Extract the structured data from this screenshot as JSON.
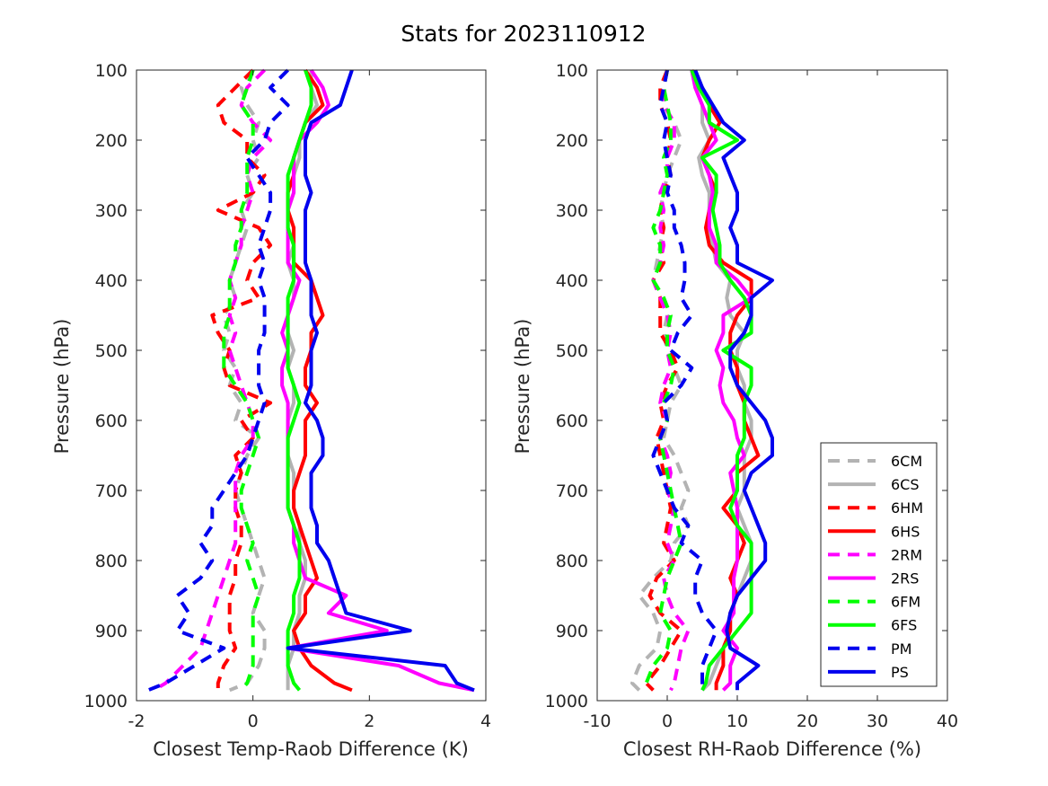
{
  "chart_data": [
    {
      "type": "line",
      "title": "Stats for 2023110912",
      "xlabel": "Closest Temp-Raob Difference (K)",
      "ylabel": "Pressure (hPa)",
      "xlim": [
        -2,
        4
      ],
      "ylim": [
        100,
        1000
      ],
      "y_reversed": true,
      "xticks": [
        "-2",
        "0",
        "2",
        "4"
      ],
      "yticks": [
        "100",
        "200",
        "300",
        "400",
        "500",
        "600",
        "700",
        "800",
        "900",
        "1000"
      ],
      "grid": false,
      "pressure": [
        100,
        125,
        150,
        175,
        200,
        225,
        250,
        275,
        300,
        325,
        350,
        375,
        400,
        425,
        450,
        475,
        500,
        525,
        550,
        575,
        600,
        625,
        650,
        675,
        700,
        725,
        750,
        775,
        800,
        825,
        850,
        875,
        900,
        925,
        950,
        975,
        985
      ],
      "series": [
        {
          "name": "6CM",
          "color": "#b3b3b3",
          "dash": true,
          "values": [
            0.0,
            -0.2,
            -0.1,
            0.1,
            0.0,
            0.1,
            -0.1,
            0.0,
            -0.2,
            -0.1,
            -0.2,
            -0.3,
            -0.4,
            -0.3,
            -0.5,
            -0.4,
            -0.5,
            -0.3,
            -0.4,
            -0.2,
            -0.3,
            0.1,
            -0.1,
            -0.2,
            -0.3,
            -0.2,
            -0.1,
            0.0,
            0.1,
            0.2,
            0.1,
            0.0,
            0.2,
            0.2,
            0.1,
            -0.1,
            -0.4
          ]
        },
        {
          "name": "6CS",
          "color": "#b3b3b3",
          "dash": false,
          "values": [
            1.0,
            1.0,
            1.1,
            0.9,
            0.8,
            0.8,
            0.7,
            0.7,
            0.6,
            0.6,
            0.7,
            0.6,
            0.7,
            0.7,
            0.6,
            0.6,
            0.7,
            0.6,
            0.7,
            0.7,
            0.6,
            0.6,
            0.6,
            0.7,
            0.7,
            0.7,
            0.8,
            0.8,
            0.9,
            0.9,
            0.8,
            0.8,
            0.7,
            0.7,
            0.6,
            0.6,
            0.6
          ]
        },
        {
          "name": "6HM",
          "color": "#ff0000",
          "dash": true,
          "values": [
            0.0,
            -0.3,
            -0.6,
            -0.5,
            -0.1,
            -0.1,
            0.2,
            0.0,
            -0.6,
            0.1,
            0.3,
            0.0,
            -0.1,
            0.1,
            -0.7,
            -0.6,
            -0.4,
            -0.5,
            -0.4,
            0.3,
            -0.2,
            0.0,
            -0.3,
            -0.2,
            -0.3,
            -0.3,
            -0.2,
            -0.2,
            -0.3,
            -0.3,
            -0.4,
            -0.4,
            -0.4,
            -0.3,
            -0.5,
            -0.6,
            -0.6
          ]
        },
        {
          "name": "6HS",
          "color": "#ff0000",
          "dash": false,
          "values": [
            0.9,
            1.1,
            1.2,
            0.9,
            0.8,
            0.7,
            0.7,
            0.6,
            0.6,
            0.7,
            0.7,
            0.7,
            1.0,
            1.1,
            1.2,
            1.0,
            1.0,
            0.9,
            0.9,
            1.1,
            0.9,
            0.9,
            0.9,
            0.8,
            0.7,
            0.7,
            0.8,
            0.9,
            1.0,
            1.1,
            0.9,
            0.9,
            0.7,
            0.8,
            1.0,
            1.4,
            1.7
          ]
        },
        {
          "name": "2RM",
          "color": "#ff00ff",
          "dash": true,
          "values": [
            0.2,
            -0.1,
            -0.2,
            0.0,
            0.3,
            0.0,
            -0.1,
            0.0,
            -0.1,
            -0.2,
            -0.2,
            -0.3,
            -0.4,
            -0.3,
            -0.4,
            -0.3,
            -0.4,
            -0.3,
            -0.2,
            -0.1,
            0.0,
            0.0,
            -0.2,
            -0.3,
            -0.3,
            -0.3,
            -0.3,
            -0.3,
            -0.4,
            -0.5,
            -0.6,
            -0.7,
            -0.8,
            -0.9,
            -1.2,
            -1.5,
            -1.7
          ]
        },
        {
          "name": "2RS",
          "color": "#ff00ff",
          "dash": false,
          "values": [
            1.0,
            1.2,
            1.3,
            1.1,
            0.8,
            0.7,
            0.7,
            0.7,
            0.6,
            0.6,
            0.6,
            0.6,
            0.8,
            0.7,
            0.6,
            0.5,
            0.6,
            0.5,
            0.5,
            0.6,
            0.6,
            0.6,
            0.6,
            0.6,
            0.6,
            0.6,
            0.7,
            0.7,
            0.8,
            0.9,
            1.6,
            1.3,
            2.3,
            0.6,
            2.5,
            3.2,
            3.8
          ]
        },
        {
          "name": "6FM",
          "color": "#00ff00",
          "dash": true,
          "values": [
            0.0,
            -0.1,
            -0.2,
            0.0,
            0.0,
            -0.1,
            -0.1,
            -0.1,
            -0.2,
            -0.2,
            -0.3,
            -0.3,
            -0.4,
            -0.4,
            -0.4,
            -0.5,
            -0.5,
            -0.5,
            -0.3,
            -0.1,
            0.0,
            0.1,
            0.0,
            -0.1,
            -0.2,
            -0.2,
            -0.1,
            0.0,
            -0.1,
            0.0,
            0.1,
            0.0,
            0.0,
            0.0,
            0.0,
            -0.1,
            -0.2
          ]
        },
        {
          "name": "6FS",
          "color": "#00ff00",
          "dash": false,
          "values": [
            0.9,
            1.0,
            1.0,
            0.9,
            0.8,
            0.7,
            0.6,
            0.6,
            0.6,
            0.6,
            0.7,
            0.7,
            0.7,
            0.6,
            0.6,
            0.6,
            0.6,
            0.6,
            0.7,
            0.8,
            0.7,
            0.6,
            0.6,
            0.6,
            0.6,
            0.6,
            0.7,
            0.8,
            0.8,
            0.8,
            0.7,
            0.7,
            0.6,
            0.6,
            0.6,
            0.7,
            0.8
          ]
        },
        {
          "name": "PM",
          "color": "#0000ee",
          "dash": true,
          "values": [
            0.6,
            0.3,
            0.6,
            0.3,
            0.2,
            -0.1,
            0.1,
            0.3,
            0.3,
            0.2,
            0.1,
            0.2,
            0.1,
            0.2,
            0.2,
            0.2,
            0.1,
            0.1,
            0.1,
            0.2,
            0.1,
            0.0,
            -0.1,
            -0.3,
            -0.5,
            -0.7,
            -0.7,
            -0.9,
            -0.7,
            -0.9,
            -1.3,
            -1.1,
            -1.3,
            -0.5,
            -1.0,
            -1.5,
            -1.8
          ]
        },
        {
          "name": "PS",
          "color": "#0000ee",
          "dash": false,
          "values": [
            1.7,
            1.6,
            1.5,
            1.0,
            0.9,
            0.9,
            0.9,
            1.0,
            0.9,
            0.9,
            0.9,
            0.9,
            1.0,
            1.0,
            1.0,
            1.1,
            1.0,
            1.0,
            1.0,
            0.9,
            1.1,
            1.2,
            1.2,
            1.0,
            1.0,
            1.0,
            1.1,
            1.1,
            1.3,
            1.4,
            1.5,
            1.6,
            2.7,
            0.6,
            3.3,
            3.5,
            3.8
          ]
        }
      ]
    },
    {
      "type": "line",
      "title": "",
      "xlabel": "Closest RH-Raob Difference (%)",
      "ylabel": "Pressure (hPa)",
      "xlim": [
        -10,
        40
      ],
      "ylim": [
        100,
        1000
      ],
      "y_reversed": true,
      "xticks": [
        "-10",
        "0",
        "10",
        "20",
        "30",
        "40"
      ],
      "yticks": [
        "100",
        "200",
        "300",
        "400",
        "500",
        "600",
        "700",
        "800",
        "900",
        "1000"
      ],
      "grid": false,
      "legend": "bottom-right",
      "pressure": [
        100,
        125,
        150,
        175,
        200,
        225,
        250,
        275,
        300,
        325,
        350,
        375,
        400,
        425,
        450,
        475,
        500,
        525,
        550,
        575,
        600,
        625,
        650,
        675,
        700,
        725,
        750,
        775,
        800,
        825,
        850,
        875,
        900,
        925,
        950,
        975,
        985
      ],
      "series": [
        {
          "name": "6CM",
          "color": "#b3b3b3",
          "dash": true,
          "values": [
            0.0,
            -0.5,
            -0.5,
            1.0,
            2.0,
            1.0,
            0.0,
            -0.5,
            -1.0,
            -0.5,
            -1.0,
            -1.5,
            -2.0,
            -1.0,
            0.0,
            -0.5,
            0.0,
            1.0,
            2.0,
            0.5,
            0.0,
            -0.5,
            1.0,
            2.0,
            3.0,
            2.0,
            3.0,
            1.0,
            0.5,
            -2.0,
            -4.0,
            -2.0,
            -1.0,
            -1.5,
            -4.0,
            -5.0,
            -4.0
          ]
        },
        {
          "name": "6CS",
          "color": "#b3b3b3",
          "dash": false,
          "values": [
            3.5,
            4.0,
            5.0,
            5.0,
            6.0,
            4.5,
            5.0,
            6.0,
            6.0,
            6.0,
            6.5,
            7.0,
            9.0,
            8.5,
            9.0,
            11.0,
            10.0,
            10.0,
            11.0,
            11.0,
            12.0,
            12.0,
            11.0,
            11.0,
            11.0,
            10.0,
            11.0,
            12.0,
            12.0,
            11.0,
            10.0,
            9.0,
            9.0,
            8.0,
            7.0,
            6.0,
            5.0
          ]
        },
        {
          "name": "6HM",
          "color": "#ff0000",
          "dash": true,
          "values": [
            0.0,
            -1.0,
            -1.0,
            0.0,
            0.5,
            0.0,
            0.5,
            -0.5,
            -1.0,
            -0.5,
            -1.0,
            -0.5,
            -2.0,
            -1.0,
            -1.0,
            -1.0,
            0.5,
            1.5,
            0.0,
            -1.0,
            -0.5,
            -1.5,
            -1.0,
            -0.5,
            0.0,
            0.5,
            0.0,
            -0.5,
            1.0,
            -1.5,
            -2.5,
            -1.0,
            2.0,
            0.5,
            -1.0,
            -3.0,
            -2.0
          ]
        },
        {
          "name": "6HS",
          "color": "#ff0000",
          "dash": false,
          "values": [
            3.5,
            5.0,
            6.0,
            7.5,
            6.0,
            5.0,
            6.0,
            7.0,
            6.0,
            5.5,
            6.0,
            8.0,
            12.0,
            12.0,
            10.0,
            9.0,
            9.0,
            10.0,
            10.0,
            11.0,
            11.0,
            12.0,
            13.0,
            10.0,
            10.0,
            8.0,
            10.0,
            11.0,
            10.0,
            9.0,
            10.0,
            9.0,
            9.0,
            8.0,
            8.0,
            7.0,
            7.0
          ]
        },
        {
          "name": "2RM",
          "color": "#ff00ff",
          "dash": true,
          "values": [
            0.0,
            -0.5,
            -0.5,
            1.0,
            1.0,
            0.0,
            0.0,
            -1.0,
            -0.5,
            -1.0,
            -0.5,
            -1.0,
            -2.0,
            -1.0,
            0.0,
            0.5,
            0.0,
            0.5,
            -0.5,
            -1.0,
            0.0,
            -1.0,
            0.0,
            0.5,
            0.0,
            1.0,
            0.5,
            0.0,
            1.0,
            -0.5,
            0.0,
            1.0,
            3.0,
            2.0,
            1.5,
            1.0,
            0.5
          ]
        },
        {
          "name": "2RS",
          "color": "#ff00ff",
          "dash": false,
          "values": [
            3.5,
            4.0,
            5.0,
            6.0,
            7.0,
            5.0,
            6.0,
            6.5,
            6.0,
            6.0,
            7.0,
            7.0,
            10.0,
            12.0,
            8.0,
            8.0,
            7.0,
            8.0,
            7.5,
            8.0,
            9.5,
            10.0,
            11.0,
            9.0,
            9.5,
            10.0,
            10.0,
            10.0,
            10.0,
            9.5,
            9.5,
            9.5,
            8.0,
            10.0,
            9.0,
            9.0,
            8.0
          ]
        },
        {
          "name": "6FM",
          "color": "#00ff00",
          "dash": true,
          "values": [
            0.0,
            -0.5,
            0.0,
            0.5,
            0.5,
            -0.5,
            0.0,
            -0.5,
            -1.0,
            -2.0,
            -1.0,
            -1.0,
            -2.0,
            -0.5,
            0.5,
            0.0,
            0.0,
            1.0,
            0.5,
            -0.5,
            0.0,
            -1.0,
            -0.5,
            0.0,
            0.5,
            1.0,
            1.5,
            2.0,
            1.0,
            0.0,
            -0.5,
            -1.0,
            0.5,
            0.0,
            -2.0,
            -3.0,
            -3.0
          ]
        },
        {
          "name": "6FS",
          "color": "#00ff00",
          "dash": false,
          "values": [
            3.5,
            4.5,
            6.0,
            6.0,
            10.0,
            5.0,
            7.0,
            7.0,
            6.5,
            7.0,
            7.5,
            7.5,
            9.0,
            11.0,
            12.0,
            12.0,
            8.0,
            12.0,
            12.0,
            11.0,
            11.0,
            11.0,
            10.0,
            10.0,
            10.0,
            9.0,
            10.0,
            12.0,
            12.0,
            12.0,
            12.0,
            12.0,
            10.0,
            8.0,
            6.0,
            5.5,
            5.0
          ]
        },
        {
          "name": "PM",
          "color": "#0000ee",
          "dash": true,
          "values": [
            0.0,
            -0.5,
            -1.0,
            0.0,
            -0.5,
            0.0,
            0.5,
            0.0,
            1.0,
            1.0,
            2.0,
            2.5,
            2.5,
            2.0,
            3.5,
            1.5,
            0.5,
            3.5,
            2.0,
            -0.5,
            0.0,
            -1.0,
            -2.0,
            -1.0,
            0.0,
            1.0,
            3.0,
            2.0,
            5.0,
            4.0,
            4.0,
            5.0,
            7.0,
            6.0,
            5.0,
            5.0,
            5.0
          ]
        },
        {
          "name": "PS",
          "color": "#0000ee",
          "dash": false,
          "values": [
            4.0,
            5.0,
            6.5,
            8.0,
            11.0,
            8.0,
            9.0,
            10.0,
            10.0,
            9.0,
            10.0,
            10.0,
            15.0,
            12.0,
            12.0,
            11.0,
            9.0,
            9.0,
            10.0,
            12.0,
            14.0,
            15.0,
            15.0,
            12.0,
            11.0,
            12.0,
            13.0,
            14.0,
            14.0,
            12.0,
            10.0,
            9.0,
            8.5,
            9.0,
            13.0,
            10.0,
            10.0
          ]
        }
      ]
    }
  ]
}
